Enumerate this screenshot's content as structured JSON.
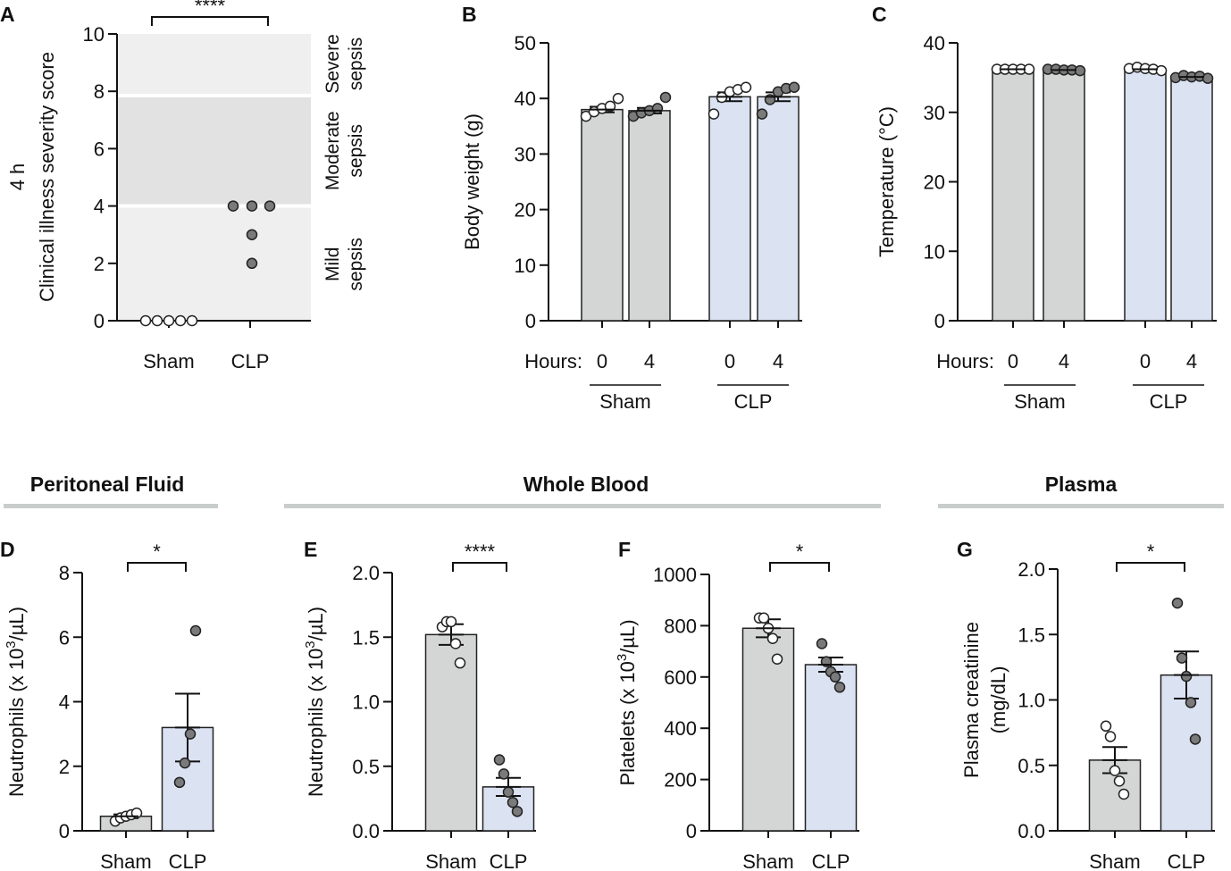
{
  "colors": {
    "sham_bar": "#d4d6d5",
    "clp_bar": "#dbe2f2",
    "open_point": "#ffffff",
    "filled_point": "#7a7a7a",
    "zone_bg": "#efefef",
    "zone_mid": "#e2e2e2",
    "section_rule": "#c9cdcc"
  },
  "sections": {
    "peritoneal": "Peritoneal Fluid",
    "blood": "Whole Blood",
    "plasma": "Plasma"
  },
  "chart_data": [
    {
      "panel": "A",
      "type": "scatter",
      "ylabel": "Clinical illness severity score",
      "row_label": "4 h",
      "ylim": [
        0,
        10
      ],
      "yticks": [
        "0",
        "2",
        "4",
        "6",
        "8",
        "10"
      ],
      "categories": [
        "Sham",
        "CLP"
      ],
      "series": [
        {
          "name": "Sham",
          "values": [
            0,
            0,
            0,
            0,
            0
          ]
        },
        {
          "name": "CLP",
          "values": [
            4,
            4,
            4,
            3,
            2
          ]
        }
      ],
      "zones": [
        {
          "lines": [
            "Mild",
            "sepsis"
          ],
          "range": [
            0,
            4
          ]
        },
        {
          "lines": [
            "Moderate",
            "sepsis"
          ],
          "range": [
            4,
            8
          ]
        },
        {
          "lines": [
            "Severe",
            "sepsis"
          ],
          "range": [
            8,
            10
          ]
        }
      ],
      "significance": "****"
    },
    {
      "panel": "B",
      "type": "bar",
      "ylabel": "Body weight (g)",
      "ylim": [
        0,
        50
      ],
      "yticks": [
        "0",
        "10",
        "20",
        "30",
        "40",
        "50"
      ],
      "x_prefix": "Hours:",
      "bars": [
        {
          "label": "0",
          "group": "Sham",
          "mean": 38.0,
          "sem": 0.5,
          "points": [
            36.8,
            37.6,
            38.2,
            38.6,
            40.0
          ]
        },
        {
          "label": "4",
          "group": "Sham",
          "mean": 37.8,
          "sem": 0.5,
          "points": [
            36.8,
            37.4,
            37.8,
            38.2,
            40.2
          ]
        },
        {
          "label": "0",
          "group": "CLP",
          "mean": 40.3,
          "sem": 0.8,
          "points": [
            37.2,
            40.2,
            41.2,
            41.6,
            42.0
          ]
        },
        {
          "label": "4",
          "group": "CLP",
          "mean": 40.3,
          "sem": 0.8,
          "points": [
            37.2,
            39.8,
            41.2,
            41.8,
            42.0
          ]
        }
      ],
      "groups": [
        "Sham",
        "CLP"
      ]
    },
    {
      "panel": "C",
      "type": "bar",
      "ylabel": "Temperature (°C)",
      "ylim": [
        0,
        40
      ],
      "yticks": [
        "0",
        "10",
        "20",
        "30",
        "40"
      ],
      "x_prefix": "Hours:",
      "bars": [
        {
          "label": "0",
          "group": "Sham",
          "mean": 36.2,
          "sem": 0.05,
          "points": [
            36.2,
            36.2,
            36.2,
            36.2,
            36.2
          ]
        },
        {
          "label": "4",
          "group": "Sham",
          "mean": 36.1,
          "sem": 0.05,
          "points": [
            36.2,
            36.2,
            36.1,
            36.1,
            36.0
          ]
        },
        {
          "label": "0",
          "group": "CLP",
          "mean": 36.2,
          "sem": 0.1,
          "points": [
            36.3,
            36.5,
            36.3,
            36.2,
            36.0
          ]
        },
        {
          "label": "4",
          "group": "CLP",
          "mean": 35.1,
          "sem": 0.1,
          "points": [
            35.0,
            35.3,
            35.1,
            35.2,
            34.9
          ]
        }
      ],
      "groups": [
        "Sham",
        "CLP"
      ]
    },
    {
      "panel": "D",
      "type": "bar",
      "ylabel_parts": [
        "Neutrophils (x 10",
        "3",
        "/µL)"
      ],
      "ylim": [
        0,
        8
      ],
      "yticks": [
        "0",
        "2",
        "4",
        "6",
        "8"
      ],
      "bars": [
        {
          "label": "Sham",
          "group": "Sham",
          "mean": 0.45,
          "sem": 0.06,
          "points": [
            0.3,
            0.4,
            0.45,
            0.5,
            0.55
          ]
        },
        {
          "label": "CLP",
          "group": "CLP",
          "mean": 3.2,
          "sem": 1.05,
          "points": [
            1.5,
            2.1,
            3.0,
            6.2
          ]
        }
      ],
      "significance": "*"
    },
    {
      "panel": "E",
      "type": "bar",
      "ylabel_parts": [
        "Neutrophils (x 10",
        "3",
        "/µL)"
      ],
      "ylim": [
        0,
        2
      ],
      "yticks": [
        "0.0",
        "0.5",
        "1.0",
        "1.5",
        "2.0"
      ],
      "bars": [
        {
          "label": "Sham",
          "group": "Sham",
          "mean": 1.52,
          "sem": 0.08,
          "points": [
            1.58,
            1.62,
            1.62,
            1.45,
            1.3
          ]
        },
        {
          "label": "CLP",
          "group": "CLP",
          "mean": 0.34,
          "sem": 0.07,
          "points": [
            0.55,
            0.44,
            0.3,
            0.22,
            0.15
          ]
        }
      ],
      "significance": "****"
    },
    {
      "panel": "F",
      "type": "bar",
      "ylabel_parts": [
        "Platelets (x 10",
        "3",
        "/µL)"
      ],
      "ylim": [
        0,
        1000
      ],
      "yticks": [
        "0",
        "200",
        "400",
        "600",
        "800",
        "1000"
      ],
      "bars": [
        {
          "label": "Sham",
          "group": "Sham",
          "mean": 790,
          "sem": 35,
          "points": [
            830,
            830,
            790,
            750,
            670
          ]
        },
        {
          "label": "CLP",
          "group": "CLP",
          "mean": 648,
          "sem": 28,
          "points": [
            730,
            660,
            620,
            600,
            560
          ]
        }
      ],
      "significance": "*"
    },
    {
      "panel": "G",
      "type": "bar",
      "ylabel_lines": [
        "Plasma creatinine",
        "(mg/dL)"
      ],
      "ylim": [
        0,
        2
      ],
      "yticks": [
        "0.0",
        "0.5",
        "1.0",
        "1.5",
        "2.0"
      ],
      "bars": [
        {
          "label": "Sham",
          "group": "Sham",
          "mean": 0.54,
          "sem": 0.1,
          "points": [
            0.8,
            0.72,
            0.46,
            0.38,
            0.28
          ]
        },
        {
          "label": "CLP",
          "group": "CLP",
          "mean": 1.19,
          "sem": 0.18,
          "points": [
            1.74,
            1.32,
            1.18,
            0.98,
            0.7
          ]
        }
      ],
      "significance": "*"
    }
  ]
}
